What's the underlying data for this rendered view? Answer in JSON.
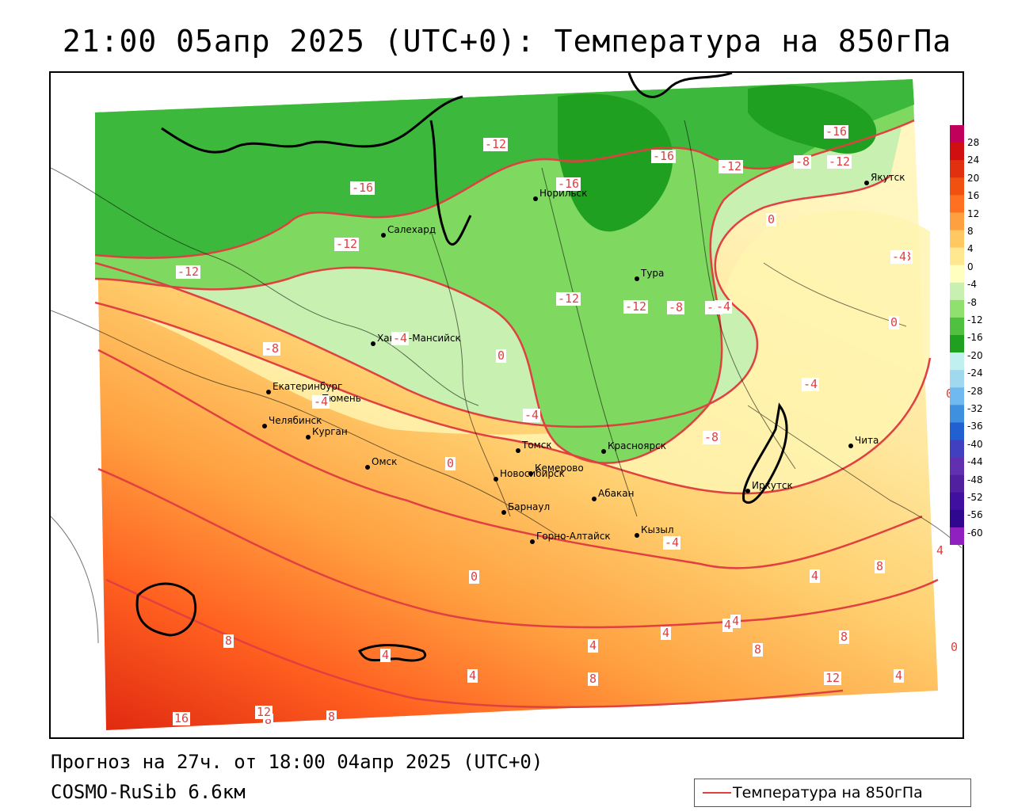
{
  "title": "21:00 05апр 2025 (UTC+0): Температура на 850гПа",
  "footer": {
    "forecast": "Прогноз на 27ч. от 18:00 04апр 2025 (UTC+0)",
    "model": "COSMO-RuSib 6.6км"
  },
  "legend": {
    "label": "Температура на 850гПа",
    "line_color": "#e04040"
  },
  "colorbar": {
    "ticks": [
      "28",
      "24",
      "20",
      "16",
      "12",
      "8",
      "4",
      "0",
      "-4",
      "-8",
      "-12",
      "-16",
      "-20",
      "-24",
      "-28",
      "-32",
      "-36",
      "-40",
      "-44",
      "-48",
      "-52",
      "-56",
      "-60"
    ],
    "colors": [
      "#c0005a",
      "#d01010",
      "#e03010",
      "#f05010",
      "#ff7020",
      "#ffa040",
      "#ffc860",
      "#ffe890",
      "#ffffc0",
      "#c8f0b0",
      "#90e070",
      "#50c040",
      "#20a020",
      "#c0f0f0",
      "#a0d8f0",
      "#70b8f0",
      "#4090e0",
      "#2060d0",
      "#4040c0",
      "#6030b0",
      "#5020a0",
      "#4010a0",
      "#300890",
      "#9020c0"
    ]
  },
  "cities": [
    {
      "name": "Якутск"
    },
    {
      "name": "Норильск"
    },
    {
      "name": "Салехард"
    },
    {
      "name": "Тура"
    },
    {
      "name": "Ханты-Мансийск"
    },
    {
      "name": "Екатеринбург"
    },
    {
      "name": "Тюмень"
    },
    {
      "name": "Челябинск"
    },
    {
      "name": "Курган"
    },
    {
      "name": "Омск"
    },
    {
      "name": "Томск"
    },
    {
      "name": "Новосибирск"
    },
    {
      "name": "Кемерово"
    },
    {
      "name": "Красноярск"
    },
    {
      "name": "Барнаул"
    },
    {
      "name": "Абакан"
    },
    {
      "name": "Иркутск"
    },
    {
      "name": "Чита"
    },
    {
      "name": "Кызыл"
    },
    {
      "name": "Горно-Алтайск"
    }
  ],
  "isotherm_labels": [
    "-16",
    "-12",
    "-16",
    "-16",
    "-12",
    "-8",
    "-12",
    "-16",
    "-12",
    "-12",
    "-12",
    "-8",
    "-4",
    "0",
    "-4",
    "-8",
    "-8",
    "-12",
    "-4",
    "-4",
    "-8",
    "-4",
    "0",
    "0",
    "-4",
    "-4",
    "0",
    "-4",
    "-8",
    "-4",
    "0",
    "0",
    "4",
    "4",
    "8",
    "8",
    "4",
    "4",
    "4",
    "4",
    "8",
    "8",
    "12",
    "8",
    "4",
    "0",
    "4",
    "4",
    "8",
    "12",
    "16",
    "8"
  ]
}
